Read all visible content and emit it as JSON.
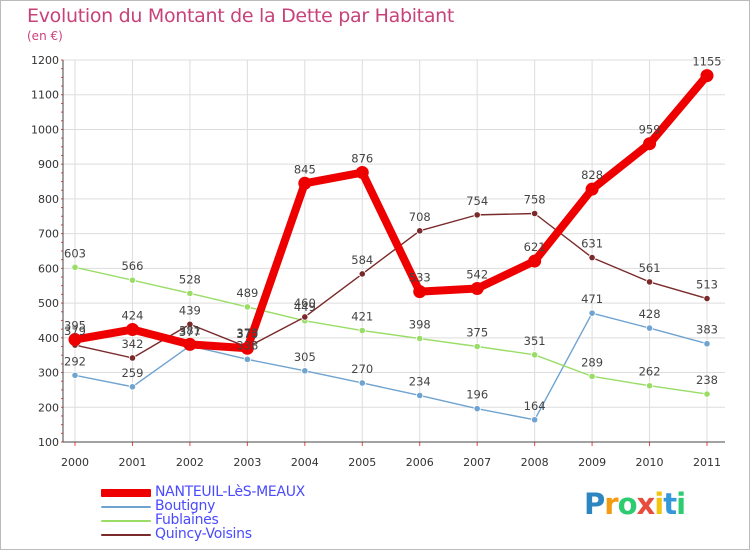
{
  "header": {
    "title": "Evolution du Montant de la Dette par Habitant",
    "unit": "(en €)"
  },
  "logo": {
    "text": "Proxiti",
    "letters": [
      "P",
      "r",
      "o",
      "x",
      "i",
      "t",
      "i"
    ],
    "colors": [
      "#2e86c1",
      "#f39c12",
      "#2ecc71",
      "#e74c3c",
      "#f1c40f",
      "#3498db",
      "#2ecc71"
    ]
  },
  "chart_data": {
    "type": "line",
    "title": "Evolution du Montant de la Dette par Habitant",
    "ylabel": "(en €)",
    "xlabel": "",
    "categories": [
      "2000",
      "2001",
      "2002",
      "2003",
      "2004",
      "2005",
      "2006",
      "2007",
      "2008",
      "2009",
      "2010",
      "2011"
    ],
    "yticks": [
      100,
      200,
      300,
      400,
      500,
      600,
      700,
      800,
      900,
      1000,
      1100,
      1200
    ],
    "ylim": [
      100,
      1200
    ],
    "grid": true,
    "legend_position": "bottom-left",
    "series": [
      {
        "name": "NANTEUIL-LèS-MEAUX",
        "color": "#ee0000",
        "emphasis": true,
        "values": [
          395,
          424,
          381,
          370,
          845,
          876,
          533,
          542,
          621,
          828,
          959,
          1155
        ],
        "labels": [
          "395",
          "424",
          "381",
          "370",
          "845",
          "876",
          "533",
          "542",
          "621",
          "828",
          "959",
          "1155"
        ]
      },
      {
        "name": "Boutigny",
        "color": "#6fa3d0",
        "emphasis": false,
        "values": [
          292,
          259,
          377,
          338,
          305,
          270,
          234,
          196,
          164,
          471,
          428,
          383
        ],
        "labels": [
          "292",
          "259",
          "377",
          "338",
          "305",
          "270",
          "234",
          "196",
          "164",
          "471",
          "428",
          "383"
        ]
      },
      {
        "name": "Fublaines",
        "color": "#99dd66",
        "emphasis": false,
        "values": [
          603,
          566,
          528,
          489,
          449,
          421,
          398,
          375,
          351,
          289,
          262,
          238
        ],
        "labels": [
          "603",
          "566",
          "528",
          "489",
          "449",
          "421",
          "398",
          "375",
          "351",
          "289",
          "262",
          "238"
        ]
      },
      {
        "name": "Quincy-Voisins",
        "color": "#7a2a2a",
        "emphasis": false,
        "values": [
          379,
          342,
          439,
          373,
          460,
          584,
          708,
          754,
          758,
          631,
          561,
          513
        ],
        "labels": [
          "379",
          "342",
          "439",
          "373",
          "460",
          "584",
          "708",
          "754",
          "758",
          "631",
          "561",
          "513"
        ]
      }
    ]
  }
}
